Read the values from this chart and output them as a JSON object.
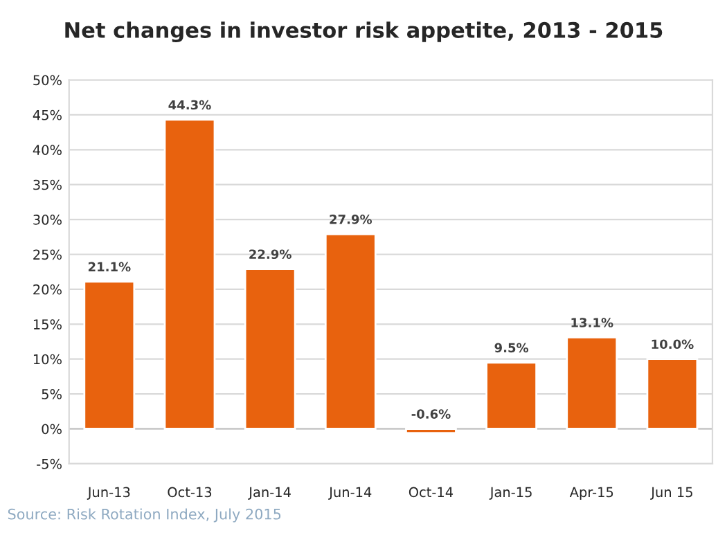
{
  "chart_data": {
    "type": "bar",
    "title": "Net changes in investor risk appetite, 2013 - 2015",
    "categories": [
      "Jun-13",
      "Oct-13",
      "Jan-14",
      "Jun-14",
      "Oct-14",
      "Jan-15",
      "Apr-15",
      "Jun 15"
    ],
    "values": [
      21.1,
      44.3,
      22.9,
      27.9,
      -0.6,
      9.5,
      13.1,
      10.0
    ],
    "value_labels": [
      "21.1%",
      "44.3%",
      "22.9%",
      "27.9%",
      "-0.6%",
      "9.5%",
      "13.1%",
      "10.0%"
    ],
    "color": "#e8620e",
    "ylim": [
      -5,
      50
    ],
    "yticks": [
      {
        "value": -5,
        "label": "-5%"
      },
      {
        "value": 0,
        "label": "0%"
      },
      {
        "value": 5,
        "label": "5%"
      },
      {
        "value": 10,
        "label": "10%"
      },
      {
        "value": 15,
        "label": "15%"
      },
      {
        "value": 20,
        "label": "20%"
      },
      {
        "value": 25,
        "label": "25%"
      },
      {
        "value": 30,
        "label": "30%"
      },
      {
        "value": 35,
        "label": "35%"
      },
      {
        "value": 40,
        "label": "40%"
      },
      {
        "value": 45,
        "label": "45%"
      },
      {
        "value": 50,
        "label": "50%"
      }
    ],
    "grid": "y",
    "annotations": [
      "Source: Risk Rotation Index, July 2015"
    ]
  }
}
